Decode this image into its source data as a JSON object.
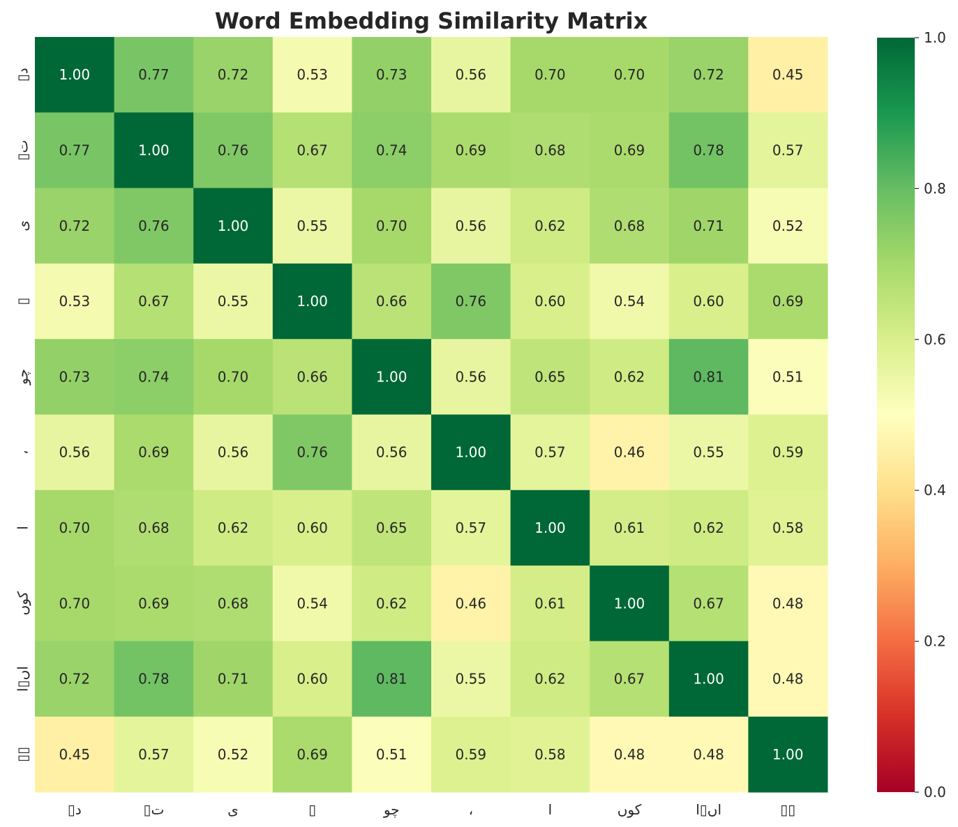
{
  "chart_data": {
    "type": "heatmap",
    "title": "Word Embedding Similarity Matrix",
    "xlabel": "",
    "ylabel": "",
    "colormap": "RdYlGn",
    "vmin": 0.0,
    "vmax": 1.0,
    "labels": [
      "▯د",
      "▯ت",
      "ی",
      "▯",
      "چو",
      "،",
      "ا",
      "کوں",
      "اں▯ا",
      "▯▯"
    ],
    "y_labels": [
      "▯د",
      "▯ت",
      "ی",
      "▯",
      "چو",
      "،",
      "ا",
      "کوں",
      "اں▯ا",
      "▯▯"
    ],
    "values": [
      [
        1.0,
        0.77,
        0.72,
        0.53,
        0.73,
        0.56,
        0.7,
        0.7,
        0.72,
        0.45
      ],
      [
        0.77,
        1.0,
        0.76,
        0.67,
        0.74,
        0.69,
        0.68,
        0.69,
        0.78,
        0.57
      ],
      [
        0.72,
        0.76,
        1.0,
        0.55,
        0.7,
        0.56,
        0.62,
        0.68,
        0.71,
        0.52
      ],
      [
        0.53,
        0.67,
        0.55,
        1.0,
        0.66,
        0.76,
        0.6,
        0.54,
        0.6,
        0.69
      ],
      [
        0.73,
        0.74,
        0.7,
        0.66,
        1.0,
        0.56,
        0.65,
        0.62,
        0.81,
        0.51
      ],
      [
        0.56,
        0.69,
        0.56,
        0.76,
        0.56,
        1.0,
        0.57,
        0.46,
        0.55,
        0.59
      ],
      [
        0.7,
        0.68,
        0.62,
        0.6,
        0.65,
        0.57,
        1.0,
        0.61,
        0.62,
        0.58
      ],
      [
        0.7,
        0.69,
        0.68,
        0.54,
        0.62,
        0.46,
        0.61,
        1.0,
        0.67,
        0.48
      ],
      [
        0.72,
        0.78,
        0.71,
        0.6,
        0.81,
        0.55,
        0.62,
        0.67,
        1.0,
        0.48
      ],
      [
        0.45,
        0.57,
        0.52,
        0.69,
        0.51,
        0.59,
        0.58,
        0.48,
        0.48,
        1.0
      ]
    ],
    "value_format": "0.00",
    "colorbar_ticks": [
      "0.0",
      "0.2",
      "0.4",
      "0.6",
      "0.8",
      "1.0"
    ]
  }
}
